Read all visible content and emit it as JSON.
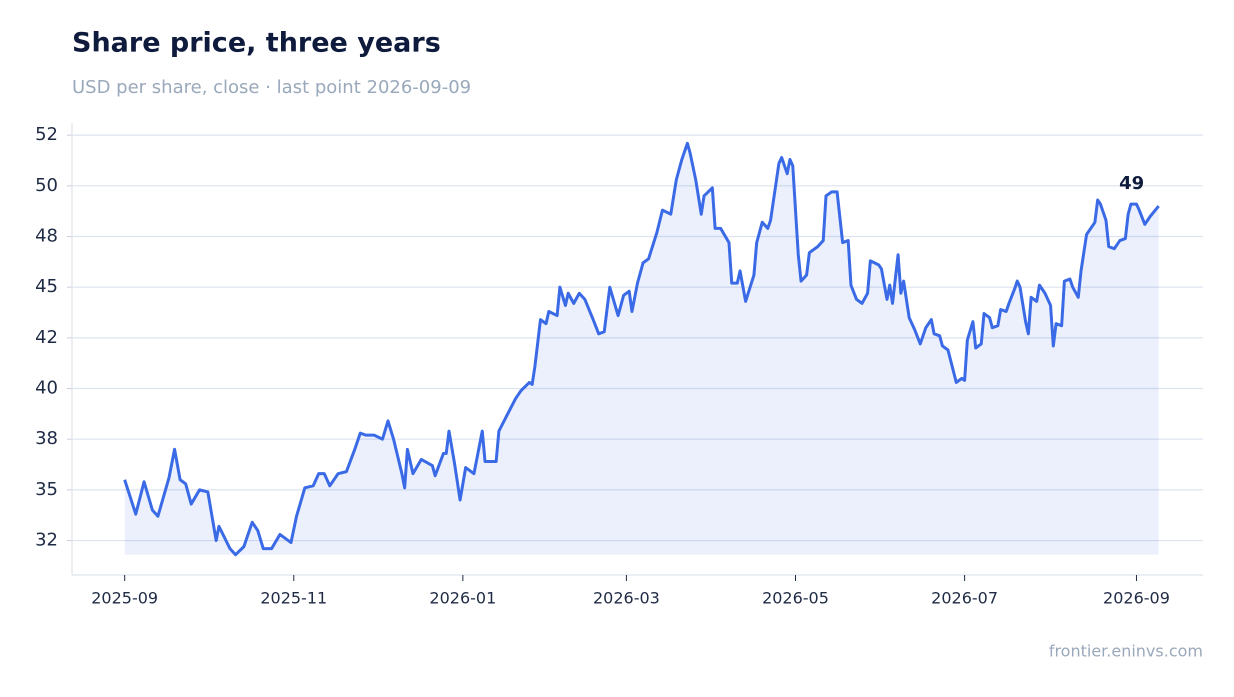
{
  "chart_data": {
    "type": "line",
    "title": "Share price, three years",
    "subtitle": "USD per share, close · last point 2026-09-09",
    "source": "frontier.eninvs.com",
    "x": [
      "2025-09-01",
      "2025-09-05",
      "2025-09-08",
      "2025-09-11",
      "2025-09-13",
      "2025-09-17",
      "2025-09-19",
      "2025-09-21",
      "2025-09-23",
      "2025-09-25",
      "2025-09-28",
      "2025-10-01",
      "2025-10-04",
      "2025-10-05",
      "2025-10-09",
      "2025-10-11",
      "2025-10-14",
      "2025-10-17",
      "2025-10-19",
      "2025-10-21",
      "2025-10-24",
      "2025-10-27",
      "2025-10-31",
      "2025-11-02",
      "2025-11-05",
      "2025-11-08",
      "2025-11-10",
      "2025-11-12",
      "2025-11-14",
      "2025-11-17",
      "2025-11-20",
      "2025-11-23",
      "2025-11-25",
      "2025-11-27",
      "2025-11-30",
      "2025-12-03",
      "2025-12-05",
      "2025-12-07",
      "2025-12-10",
      "2025-12-11",
      "2025-12-12",
      "2025-12-14",
      "2025-12-17",
      "2025-12-21",
      "2025-12-22",
      "2025-12-25",
      "2025-12-26",
      "2025-12-27",
      "2025-12-29",
      "2025-12-31",
      "2026-01-02",
      "2026-01-05",
      "2026-01-08",
      "2026-01-09",
      "2026-01-13",
      "2026-01-14",
      "2026-01-17",
      "2026-01-20",
      "2026-01-22",
      "2026-01-25",
      "2026-01-26",
      "2026-01-27",
      "2026-01-29",
      "2026-01-31",
      "2026-02-01",
      "2026-02-04",
      "2026-02-05",
      "2026-02-07",
      "2026-02-08",
      "2026-02-10",
      "2026-02-12",
      "2026-02-14",
      "2026-02-17",
      "2026-02-19",
      "2026-02-21",
      "2026-02-23",
      "2026-02-26",
      "2026-02-28",
      "2026-03-02",
      "2026-03-03",
      "2026-03-05",
      "2026-03-07",
      "2026-03-09",
      "2026-03-12",
      "2026-03-14",
      "2026-03-17",
      "2026-03-19",
      "2026-03-21",
      "2026-03-23",
      "2026-03-24",
      "2026-03-26",
      "2026-03-28",
      "2026-03-29",
      "2026-04-01",
      "2026-04-02",
      "2026-04-04",
      "2026-04-07",
      "2026-04-08",
      "2026-04-10",
      "2026-04-11",
      "2026-04-13",
      "2026-04-16",
      "2026-04-17",
      "2026-04-19",
      "2026-04-21",
      "2026-04-22",
      "2026-04-25",
      "2026-04-26",
      "2026-04-28",
      "2026-04-29",
      "2026-04-30",
      "2026-05-02",
      "2026-05-03",
      "2026-05-05",
      "2026-05-06",
      "2026-05-09",
      "2026-05-11",
      "2026-05-12",
      "2026-05-14",
      "2026-05-16",
      "2026-05-18",
      "2026-05-20",
      "2026-05-21",
      "2026-05-23",
      "2026-05-25",
      "2026-05-27",
      "2026-05-28",
      "2026-05-31",
      "2026-06-01",
      "2026-06-03",
      "2026-06-04",
      "2026-06-05",
      "2026-06-07",
      "2026-06-08",
      "2026-06-09",
      "2026-06-11",
      "2026-06-13",
      "2026-06-15",
      "2026-06-17",
      "2026-06-19",
      "2026-06-20",
      "2026-06-22",
      "2026-06-23",
      "2026-06-25",
      "2026-06-28",
      "2026-06-30",
      "2026-07-01",
      "2026-07-02",
      "2026-07-04",
      "2026-07-05",
      "2026-07-07",
      "2026-07-08",
      "2026-07-10",
      "2026-07-11",
      "2026-07-13",
      "2026-07-14",
      "2026-07-16",
      "2026-07-17",
      "2026-07-19",
      "2026-07-20",
      "2026-07-21",
      "2026-07-23",
      "2026-07-24",
      "2026-07-25",
      "2026-07-27",
      "2026-07-28",
      "2026-07-30",
      "2026-08-01",
      "2026-08-02",
      "2026-08-03",
      "2026-08-05",
      "2026-08-06",
      "2026-08-08",
      "2026-08-09",
      "2026-08-11",
      "2026-08-12",
      "2026-08-14",
      "2026-08-17",
      "2026-08-18",
      "2026-08-19",
      "2026-08-21",
      "2026-08-22",
      "2026-08-24",
      "2026-08-26",
      "2026-08-28",
      "2026-08-29",
      "2026-08-30",
      "2026-09-01",
      "2026-09-02",
      "2026-09-04",
      "2026-09-06",
      "2026-09-09"
    ],
    "series": [
      {
        "name": "Close",
        "color": "#3a6ae6",
        "values": [
          35.5,
          33.8,
          35.4,
          34.0,
          33.7,
          35.6,
          37.0,
          35.5,
          35.3,
          34.3,
          35.0,
          34.9,
          32.5,
          33.2,
          32.1,
          31.8,
          32.2,
          33.4,
          33.0,
          32.1,
          32.1,
          32.8,
          32.4,
          33.7,
          35.1,
          35.2,
          35.8,
          35.8,
          35.2,
          35.8,
          35.9,
          37.0,
          37.8,
          37.7,
          37.7,
          37.5,
          38.4,
          37.5,
          35.8,
          35.1,
          37.0,
          35.8,
          36.5,
          36.2,
          35.7,
          36.8,
          36.8,
          37.9,
          36.3,
          34.5,
          36.1,
          35.8,
          37.9,
          36.4,
          36.4,
          37.9,
          38.7,
          39.5,
          39.9,
          40.3,
          40.2,
          41.1,
          43.4,
          43.2,
          43.8,
          43.6,
          45.0,
          44.1,
          44.7,
          44.2,
          44.7,
          44.4,
          43.4,
          42.7,
          42.8,
          45.0,
          43.6,
          44.6,
          44.8,
          43.8,
          45.2,
          46.2,
          46.4,
          47.7,
          48.8,
          48.6,
          50.3,
          51.3,
          52.1,
          51.6,
          50.3,
          48.6,
          49.5,
          49.9,
          47.9,
          47.9,
          47.2,
          45.2,
          45.2,
          45.8,
          44.3,
          45.6,
          47.2,
          48.2,
          47.9,
          48.3,
          51.1,
          51.4,
          50.6,
          51.3,
          51.0,
          46.6,
          45.3,
          45.6,
          46.7,
          47.0,
          47.3,
          49.5,
          49.7,
          49.7,
          47.2,
          47.3,
          45.1,
          44.4,
          44.2,
          44.7,
          46.3,
          46.1,
          45.9,
          44.4,
          45.1,
          44.2,
          46.6,
          44.7,
          45.3,
          43.5,
          42.9,
          42.2,
          43.0,
          43.4,
          42.7,
          42.6,
          42.1,
          41.9,
          40.3,
          40.5,
          40.4,
          42.4,
          43.3,
          42.0,
          42.2,
          43.7,
          43.5,
          43.0,
          43.1,
          43.9,
          43.8,
          44.2,
          44.9,
          45.3,
          45.0,
          43.3,
          42.7,
          44.5,
          44.3,
          45.1,
          44.7,
          44.1,
          42.1,
          43.2,
          43.1,
          45.3,
          45.4,
          45.0,
          44.5,
          45.8,
          47.6,
          48.2,
          49.3,
          49.1,
          48.3,
          47.0,
          46.9,
          47.3,
          47.4,
          48.6,
          49.1,
          49.1,
          48.8,
          48.1,
          48.5,
          49
        ]
      }
    ],
    "xlim": [
      "2025-08-13",
      "2026-09-25"
    ],
    "xticks": [
      {
        "value": "2025-09-01",
        "label": "2025-09"
      },
      {
        "value": "2025-11-01",
        "label": "2025-11"
      },
      {
        "value": "2026-01-01",
        "label": "2026-01"
      },
      {
        "value": "2026-03-01",
        "label": "2026-03"
      },
      {
        "value": "2026-05-01",
        "label": "2026-05"
      },
      {
        "value": "2026-07-01",
        "label": "2026-07"
      },
      {
        "value": "2026-09-01",
        "label": "2026-09"
      }
    ],
    "ylim": [
      30.8,
      53.1
    ],
    "yticks": [
      {
        "value": 32.5,
        "label": "32"
      },
      {
        "value": 35,
        "label": "35"
      },
      {
        "value": 37.5,
        "label": "38"
      },
      {
        "value": 40,
        "label": "40"
      },
      {
        "value": 42.5,
        "label": "42"
      },
      {
        "value": 45,
        "label": "45"
      },
      {
        "value": 47.5,
        "label": "48"
      },
      {
        "value": 50,
        "label": "50"
      },
      {
        "value": 52.5,
        "label": "52"
      }
    ],
    "grid": true,
    "area_fill": true
  }
}
